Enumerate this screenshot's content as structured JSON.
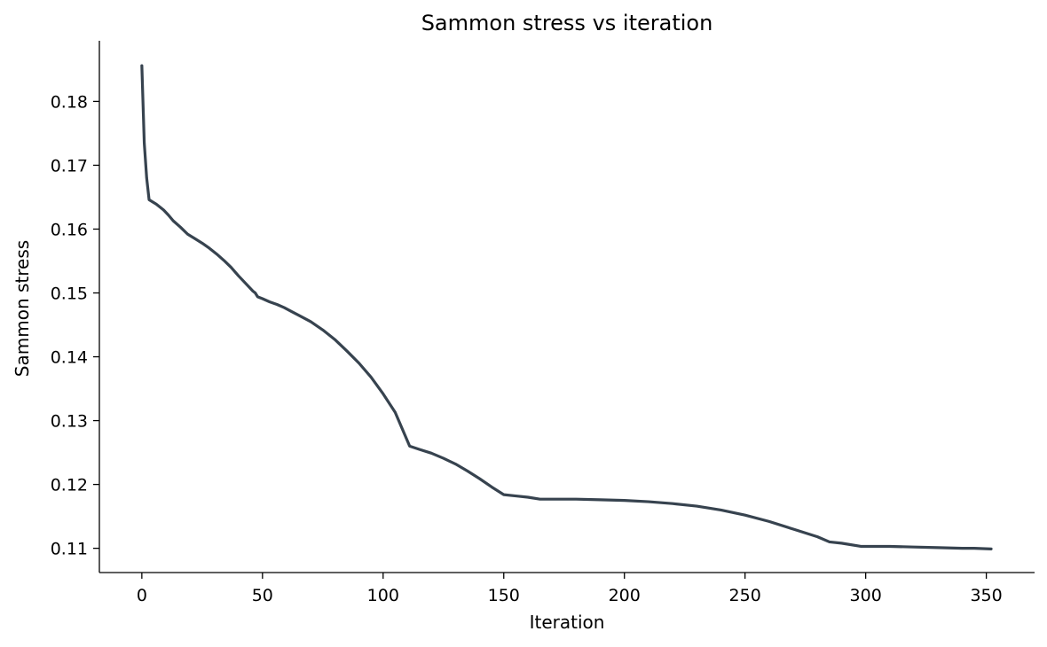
{
  "chart_data": {
    "type": "line",
    "title": "Sammon stress vs iteration",
    "xlabel": "Iteration",
    "ylabel": "Sammon stress",
    "xlim": [
      -17.6,
      370
    ],
    "ylim": [
      0.1062,
      0.1895
    ],
    "xticks": [
      0,
      50,
      100,
      150,
      200,
      250,
      300,
      350
    ],
    "yticks": [
      0.11,
      0.12,
      0.13,
      0.14,
      0.15,
      0.16,
      0.17,
      0.18
    ],
    "ytick_labels": [
      "0.11",
      "0.12",
      "0.13",
      "0.14",
      "0.15",
      "0.16",
      "0.17",
      "0.18"
    ],
    "grid": false,
    "colors": {
      "series": "#37434f"
    },
    "series": [
      {
        "x": [
          0,
          1,
          2,
          3,
          6,
          9,
          11,
          13,
          16,
          19,
          22,
          25,
          28,
          31,
          34,
          37,
          40,
          43,
          46,
          47,
          48,
          50,
          53,
          56,
          59,
          62,
          65,
          70,
          75,
          80,
          85,
          90,
          95,
          100,
          105,
          111,
          115,
          120,
          125,
          130,
          135,
          140,
          145,
          150,
          155,
          160,
          165,
          170,
          180,
          190,
          200,
          210,
          220,
          230,
          240,
          250,
          260,
          270,
          280,
          285,
          290,
          298,
          310,
          320,
          330,
          340,
          345,
          352
        ],
        "y": [
          0.1856,
          0.1735,
          0.168,
          0.1646,
          0.1639,
          0.163,
          0.1622,
          0.1613,
          0.1603,
          0.1592,
          0.1585,
          0.1578,
          0.157,
          0.1561,
          0.1551,
          0.154,
          0.1527,
          0.1515,
          0.1503,
          0.15,
          0.1494,
          0.1491,
          0.1486,
          0.1482,
          0.1477,
          0.1471,
          0.1465,
          0.1455,
          0.1442,
          0.1427,
          0.1409,
          0.139,
          0.1368,
          0.1342,
          0.1313,
          0.126,
          0.1255,
          0.1249,
          0.1241,
          0.1232,
          0.1221,
          0.1209,
          0.1196,
          0.1184,
          0.1182,
          0.118,
          0.1177,
          0.1177,
          0.1177,
          0.1176,
          0.1175,
          0.1173,
          0.117,
          0.1166,
          0.116,
          0.1152,
          0.1142,
          0.113,
          0.1118,
          0.111,
          0.1108,
          0.1103,
          0.1103,
          0.1102,
          0.1101,
          0.11,
          0.11,
          0.1099
        ]
      }
    ]
  }
}
